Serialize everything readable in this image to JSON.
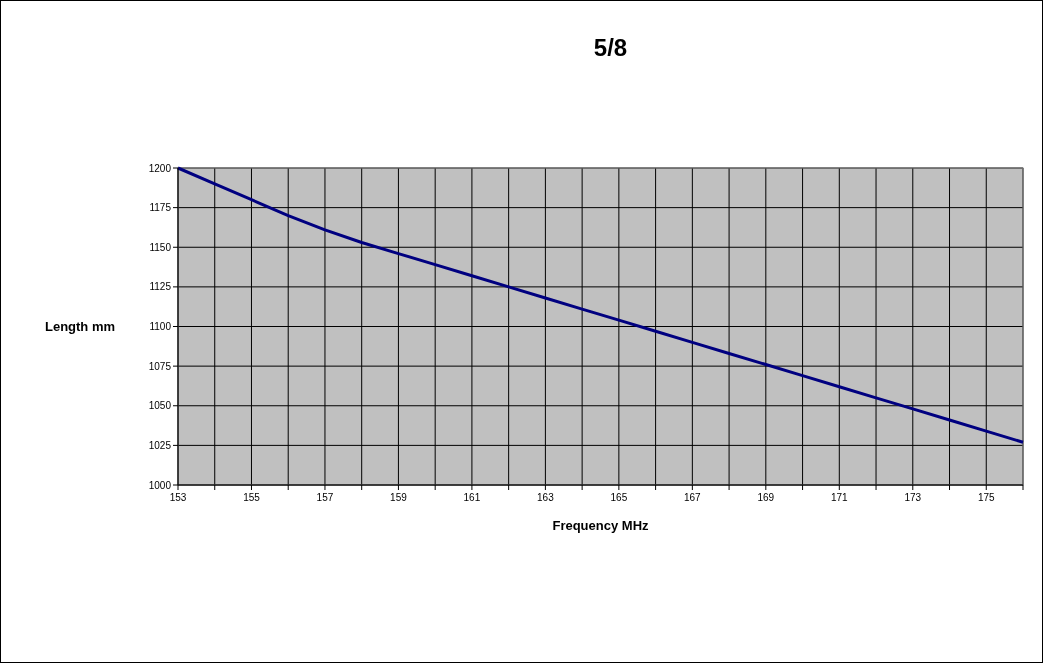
{
  "chart_data": {
    "type": "line",
    "title": "5/8",
    "xlabel": "Frequency MHz",
    "ylabel": "Length mm",
    "x": [
      153,
      154,
      155,
      156,
      157,
      158,
      159,
      160,
      161,
      162,
      163,
      164,
      165,
      166,
      167,
      168,
      169,
      170,
      171,
      172,
      173,
      174,
      175,
      176
    ],
    "series": [
      {
        "color": "#000080",
        "values": [
          1200,
          1190,
          1180,
          1170,
          1161,
          1153,
          1146,
          1139,
          1132,
          1125,
          1118,
          1111,
          1104,
          1097,
          1090,
          1083,
          1076,
          1069,
          1062,
          1055,
          1048,
          1041,
          1034,
          1027
        ]
      }
    ],
    "xlim": [
      153,
      176
    ],
    "xticks": [
      153,
      {
        "value": 154,
        "label": null
      },
      155,
      {
        "value": 156,
        "label": null
      },
      157,
      {
        "value": 158,
        "label": null
      },
      159,
      {
        "value": 160,
        "label": null
      },
      161,
      {
        "value": 162,
        "label": null
      },
      163,
      {
        "value": 164,
        "label": null
      },
      165,
      {
        "value": 166,
        "label": null
      },
      167,
      {
        "value": 168,
        "label": null
      },
      169,
      {
        "value": 170,
        "label": null
      },
      171,
      {
        "value": 172,
        "label": null
      },
      173,
      {
        "value": 174,
        "label": null
      },
      175,
      {
        "value": 176,
        "label": null
      }
    ],
    "ylim": [
      1000,
      1200
    ],
    "yticks": [
      1000,
      1025,
      1050,
      1075,
      1100,
      1125,
      1150,
      1175,
      1200
    ],
    "grid": true,
    "marker": "none",
    "line_style": "solid"
  }
}
